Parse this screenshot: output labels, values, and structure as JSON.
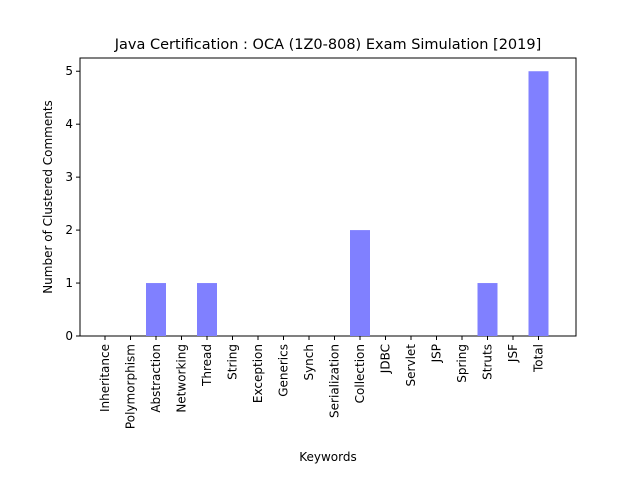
{
  "chart_data": {
    "type": "bar",
    "title": "Java Certification : OCA (1Z0-808) Exam Simulation [2019]",
    "xlabel": "Keywords",
    "ylabel": "Number of Clustered Comments",
    "categories": [
      "Inheritance",
      "Polymorphism",
      "Abstraction",
      "Networking",
      "Thread",
      "String",
      "Exception",
      "Generics",
      "Synch",
      "Serialization",
      "Collection",
      "JDBC",
      "Servlet",
      "JSP",
      "Spring",
      "Struts",
      "JSF",
      "Total"
    ],
    "values": [
      0,
      0,
      1,
      0,
      1,
      0,
      0,
      0,
      0,
      0,
      2,
      0,
      0,
      0,
      0,
      1,
      0,
      5
    ],
    "ylim": [
      0,
      5.25
    ],
    "yticks": [
      0,
      1,
      2,
      3,
      4,
      5
    ],
    "bar_color": "#8080ff",
    "grid": false,
    "legend": "none"
  }
}
